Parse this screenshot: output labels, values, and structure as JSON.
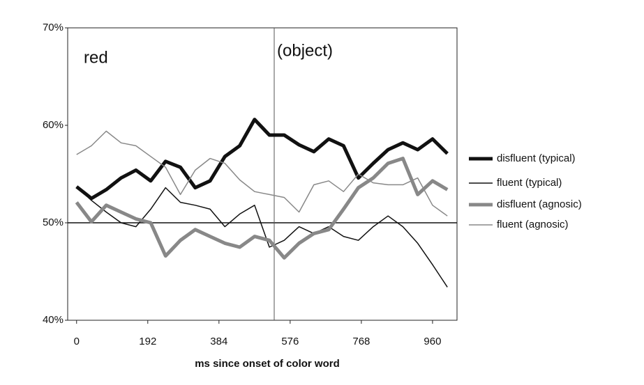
{
  "chart_data": {
    "type": "line",
    "x_label": "ms since onset of color word",
    "annotations": [
      "red",
      "(object)"
    ],
    "vline": 533,
    "hline": 50,
    "xlim": [
      -24,
      1026
    ],
    "ylim": [
      40,
      70
    ],
    "xticks": [
      0,
      192,
      384,
      576,
      768,
      960
    ],
    "yticks": [
      {
        "value": 40,
        "label": "40%"
      },
      {
        "value": 50,
        "label": "50%"
      },
      {
        "value": 60,
        "label": "60%"
      },
      {
        "value": 70,
        "label": "70%"
      }
    ],
    "x": [
      0,
      40,
      80,
      120,
      160,
      200,
      240,
      280,
      320,
      360,
      400,
      440,
      480,
      520,
      560,
      600,
      640,
      680,
      720,
      760,
      800,
      840,
      880,
      920,
      960,
      1000
    ],
    "series": [
      {
        "name": "disfluent (typical)",
        "color": "#111111",
        "width": 5,
        "values": [
          53.7,
          52.5,
          53.4,
          54.6,
          55.4,
          54.3,
          56.3,
          55.7,
          53.6,
          54.3,
          56.8,
          57.9,
          60.6,
          59,
          59,
          58,
          57.3,
          58.6,
          57.9,
          54.6,
          56.1,
          57.5,
          58.2,
          57.5,
          58.6,
          57.1
        ]
      },
      {
        "name": "fluent (typical)",
        "color": "#111111",
        "width": 1.5,
        "values": [
          53.7,
          52.3,
          51.1,
          50,
          49.6,
          51.4,
          53.6,
          52.1,
          51.8,
          51.4,
          49.6,
          50.9,
          51.8,
          47.5,
          48.2,
          49.6,
          48.9,
          49.6,
          48.6,
          48.2,
          49.6,
          50.7,
          49.6,
          47.9,
          45.7,
          43.4
        ]
      },
      {
        "name": "disfluent (agnosic)",
        "color": "#888888",
        "width": 5,
        "values": [
          52.1,
          50.1,
          51.8,
          51.1,
          50.4,
          50,
          46.6,
          48.2,
          49.3,
          48.6,
          47.9,
          47.5,
          48.6,
          48.2,
          46.4,
          47.9,
          48.9,
          49.3,
          51.4,
          53.6,
          54.6,
          56.1,
          56.6,
          52.9,
          54.3,
          53.4
        ]
      },
      {
        "name": "fluent (agnosic)",
        "color": "#888888",
        "width": 1.5,
        "values": [
          57,
          57.9,
          59.4,
          58.2,
          57.9,
          56.8,
          55.7,
          52.9,
          55.4,
          56.6,
          56.1,
          54.4,
          53.2,
          52.9,
          52.6,
          51.1,
          53.9,
          54.3,
          53.2,
          55,
          54.1,
          53.9,
          53.9,
          54.6,
          51.8,
          50.7
        ]
      }
    ]
  }
}
